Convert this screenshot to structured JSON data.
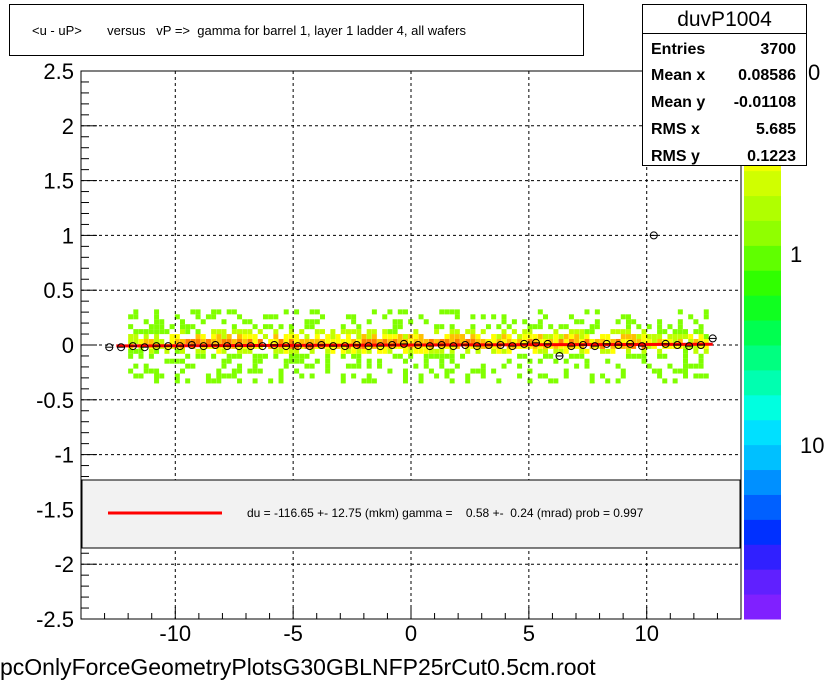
{
  "title": "<u - uP>       versus   vP =>  gamma for barrel 1, layer 1 ladder 4, all wafers",
  "stats": {
    "name": "duvP1004",
    "rows": [
      {
        "key": "Entries",
        "value": "3700"
      },
      {
        "key": "Mean x",
        "value": "0.08586"
      },
      {
        "key": "Mean y",
        "value": "-0.01108"
      },
      {
        "key": "RMS x",
        "value": "5.685"
      },
      {
        "key": "RMS y",
        "value": "0.1223"
      }
    ]
  },
  "legend": {
    "text": "du = -116.65 +- 12.75 (mkm) gamma =    0.58 +-  0.24 (mrad) prob = 0.997",
    "line_color": "#ff0000"
  },
  "footer": "pcOnlyForceGeometryPlotsG30GBLNFP25rCut0.5cm.root",
  "colorbar": {
    "labels": [
      "10",
      "1",
      "0"
    ]
  },
  "chart_data": {
    "type": "scatter",
    "title": "<u - uP>       versus   vP =>  gamma for barrel 1, layer 1 ladder 4, all wafers",
    "xlabel": "",
    "ylabel": "",
    "xlim": [
      -14,
      14
    ],
    "ylim": [
      -2.5,
      2.5
    ],
    "x_ticks": [
      -10,
      -5,
      0,
      5,
      10
    ],
    "y_ticks": [
      -2.5,
      -2,
      -1.5,
      -1,
      -0.5,
      0,
      0.5,
      1,
      1.5,
      2,
      2.5
    ],
    "grid": true,
    "fit_line": {
      "x": [
        -12.5,
        12.8
      ],
      "y": [
        -0.008,
        0.007
      ],
      "color": "#ff0000"
    },
    "profile_points": [
      {
        "x": -12.8,
        "y": -0.02
      },
      {
        "x": -12.3,
        "y": -0.02
      },
      {
        "x": -11.8,
        "y": -0.01
      },
      {
        "x": -11.3,
        "y": -0.02
      },
      {
        "x": -10.8,
        "y": -0.01
      },
      {
        "x": -10.3,
        "y": -0.01
      },
      {
        "x": -9.8,
        "y": -0.01
      },
      {
        "x": -9.3,
        "y": 0.0
      },
      {
        "x": -8.8,
        "y": -0.01
      },
      {
        "x": -8.3,
        "y": 0.0
      },
      {
        "x": -7.8,
        "y": -0.01
      },
      {
        "x": -7.3,
        "y": -0.01
      },
      {
        "x": -6.8,
        "y": -0.01
      },
      {
        "x": -6.3,
        "y": -0.01
      },
      {
        "x": -5.8,
        "y": 0.0
      },
      {
        "x": -5.3,
        "y": -0.01
      },
      {
        "x": -4.8,
        "y": -0.01
      },
      {
        "x": -4.3,
        "y": -0.01
      },
      {
        "x": -3.8,
        "y": 0.0
      },
      {
        "x": -3.3,
        "y": -0.01
      },
      {
        "x": -2.8,
        "y": -0.01
      },
      {
        "x": -2.3,
        "y": 0.0
      },
      {
        "x": -1.8,
        "y": -0.01
      },
      {
        "x": -1.3,
        "y": -0.01
      },
      {
        "x": -0.8,
        "y": 0.0
      },
      {
        "x": -0.3,
        "y": 0.01
      },
      {
        "x": 0.3,
        "y": 0.0
      },
      {
        "x": 0.8,
        "y": -0.01
      },
      {
        "x": 1.3,
        "y": 0.0
      },
      {
        "x": 1.8,
        "y": -0.01
      },
      {
        "x": 2.3,
        "y": 0.0
      },
      {
        "x": 2.8,
        "y": -0.01
      },
      {
        "x": 3.3,
        "y": 0.0
      },
      {
        "x": 3.8,
        "y": 0.0
      },
      {
        "x": 4.3,
        "y": -0.01
      },
      {
        "x": 4.8,
        "y": 0.01
      },
      {
        "x": 5.3,
        "y": 0.02
      },
      {
        "x": 5.8,
        "y": 0.01
      },
      {
        "x": 6.3,
        "y": -0.1
      },
      {
        "x": 6.8,
        "y": -0.01
      },
      {
        "x": 7.3,
        "y": 0.0
      },
      {
        "x": 7.8,
        "y": -0.01
      },
      {
        "x": 8.3,
        "y": 0.01
      },
      {
        "x": 8.8,
        "y": 0.0
      },
      {
        "x": 9.3,
        "y": 0.01
      },
      {
        "x": 9.8,
        "y": -0.01
      },
      {
        "x": 10.3,
        "y": 1.0
      },
      {
        "x": 10.8,
        "y": 0.01
      },
      {
        "x": 11.3,
        "y": 0.0
      },
      {
        "x": 11.8,
        "y": -0.01
      },
      {
        "x": 12.3,
        "y": 0.0
      },
      {
        "x": 12.8,
        "y": 0.06
      }
    ],
    "density_band": {
      "x_range": [
        -12,
        12.5
      ],
      "y_range": [
        -0.35,
        0.3
      ],
      "core_y_range": [
        -0.1,
        0.1
      ]
    },
    "legend_entry": "du = -116.65 +- 12.75 (mkm) gamma =    0.58 +-  0.24 (mrad) prob = 0.997"
  }
}
